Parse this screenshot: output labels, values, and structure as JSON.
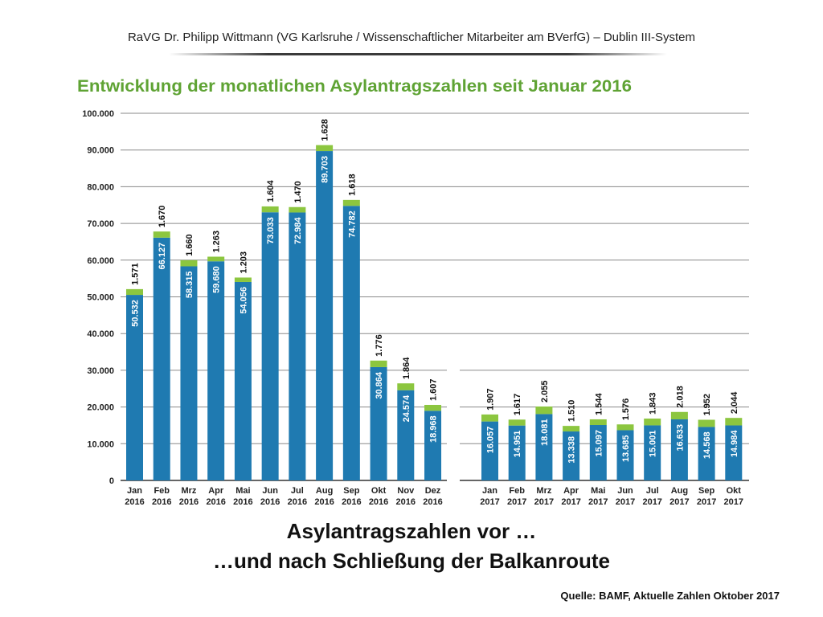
{
  "header": {
    "text": "RaVG Dr. Philipp Wittmann (VG Karlsruhe / Wissenschaftlicher Mitarbeiter am BVerfG) – Dublin III-System"
  },
  "slide": {
    "subtitle_line1": "Asylantragszahlen vor …",
    "subtitle_line2": "…und nach Schließung der Balkanroute",
    "source": "Quelle: BAMF, Aktuelle Zahlen Oktober 2017"
  },
  "colors": {
    "blue": "#1f7ab1",
    "green": "#8cc63f",
    "title_green": "#5fa334",
    "grid": "#8a8a8a"
  },
  "chart_data": {
    "type": "bar",
    "stacked": true,
    "title": "Entwicklung der monatlichen Asylantragszahlen seit Januar 2016",
    "ylim": [
      0,
      100000
    ],
    "yticks": [
      "0",
      "10.000",
      "20.000",
      "30.000",
      "40.000",
      "50.000",
      "60.000",
      "70.000",
      "80.000",
      "90.000",
      "100.000"
    ],
    "grid": true,
    "categories": [
      [
        "Jan",
        "2016"
      ],
      [
        "Feb",
        "2016"
      ],
      [
        "Mrz",
        "2016"
      ],
      [
        "Apr",
        "2016"
      ],
      [
        "Mai",
        "2016"
      ],
      [
        "Jun",
        "2016"
      ],
      [
        "Jul",
        "2016"
      ],
      [
        "Aug",
        "2016"
      ],
      [
        "Sep",
        "2016"
      ],
      [
        "Okt",
        "2016"
      ],
      [
        "Nov",
        "2016"
      ],
      [
        "Dez",
        "2016"
      ],
      [
        "Jan",
        "2017"
      ],
      [
        "Feb",
        "2017"
      ],
      [
        "Mrz",
        "2017"
      ],
      [
        "Apr",
        "2017"
      ],
      [
        "Mai",
        "2017"
      ],
      [
        "Jun",
        "2017"
      ],
      [
        "Jul",
        "2017"
      ],
      [
        "Aug",
        "2017"
      ],
      [
        "Sep",
        "2017"
      ],
      [
        "Okt",
        "2017"
      ]
    ],
    "series": [
      {
        "values": [
          50532,
          66127,
          58315,
          59680,
          54056,
          73033,
          72984,
          89703,
          74782,
          30864,
          24574,
          18968,
          16057,
          14951,
          18081,
          13338,
          15097,
          13685,
          15001,
          16633,
          14568,
          14984
        ],
        "labels": [
          "50.532",
          "66.127",
          "58.315",
          "59.680",
          "54.056",
          "73.033",
          "72.984",
          "89.703",
          "74.782",
          "30.864",
          "24.574",
          "18.968",
          "16.057",
          "14.951",
          "18.081",
          "13.338",
          "15.097",
          "13.685",
          "15.001",
          "16.633",
          "14.568",
          "14.984"
        ]
      },
      {
        "values": [
          1571,
          1670,
          1660,
          1263,
          1203,
          1604,
          1470,
          1628,
          1618,
          1776,
          1864,
          1607,
          1907,
          1617,
          2055,
          1510,
          1544,
          1576,
          1843,
          2018,
          1952,
          2044
        ],
        "labels": [
          "1.571",
          "1.670",
          "1.660",
          "1.263",
          "1.203",
          "1.604",
          "1.470",
          "1.628",
          "1.618",
          "1.776",
          "1.864",
          "1.607",
          "1.907",
          "1.617",
          "2.055",
          "1.510",
          "1.544",
          "1.576",
          "1.843",
          "2.018",
          "1.952",
          "2.044"
        ]
      }
    ]
  }
}
